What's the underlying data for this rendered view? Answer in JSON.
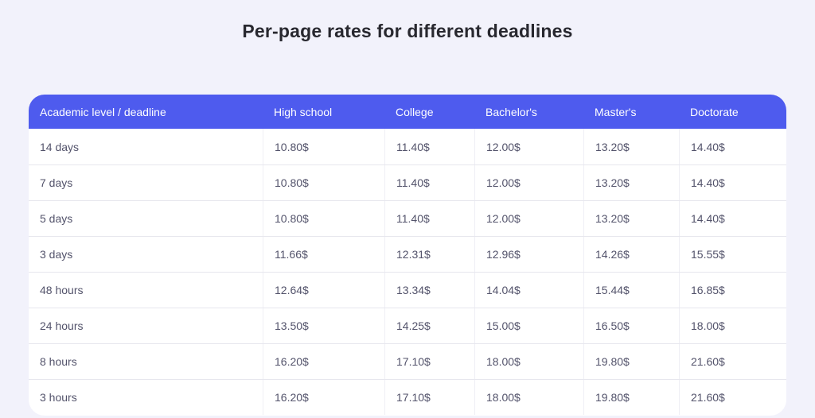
{
  "page": {
    "title": "Per-page rates for different deadlines",
    "background_color": "#f2f2fb"
  },
  "pricing_table": {
    "header": {
      "background_color": "#4e5bee",
      "text_color": "#ffffff",
      "columns": [
        "Academic level / deadline",
        "High school",
        "College",
        "Bachelor's",
        "Master's",
        "Doctorate"
      ]
    },
    "rows": [
      {
        "deadline": "14 days",
        "prices": [
          "10.80$",
          "11.40$",
          "12.00$",
          "13.20$",
          "14.40$"
        ]
      },
      {
        "deadline": "7 days",
        "prices": [
          "10.80$",
          "11.40$",
          "12.00$",
          "13.20$",
          "14.40$"
        ]
      },
      {
        "deadline": "5 days",
        "prices": [
          "10.80$",
          "11.40$",
          "12.00$",
          "13.20$",
          "14.40$"
        ]
      },
      {
        "deadline": "3 days",
        "prices": [
          "11.66$",
          "12.31$",
          "12.96$",
          "14.26$",
          "15.55$"
        ]
      },
      {
        "deadline": "48 hours",
        "prices": [
          "12.64$",
          "13.34$",
          "14.04$",
          "15.44$",
          "16.85$"
        ]
      },
      {
        "deadline": "24 hours",
        "prices": [
          "13.50$",
          "14.25$",
          "15.00$",
          "16.50$",
          "18.00$"
        ]
      },
      {
        "deadline": "8 hours",
        "prices": [
          "16.20$",
          "17.10$",
          "18.00$",
          "19.80$",
          "21.60$"
        ]
      },
      {
        "deadline": "3 hours",
        "prices": [
          "16.20$",
          "17.10$",
          "18.00$",
          "19.80$",
          "21.60$"
        ]
      }
    ]
  }
}
